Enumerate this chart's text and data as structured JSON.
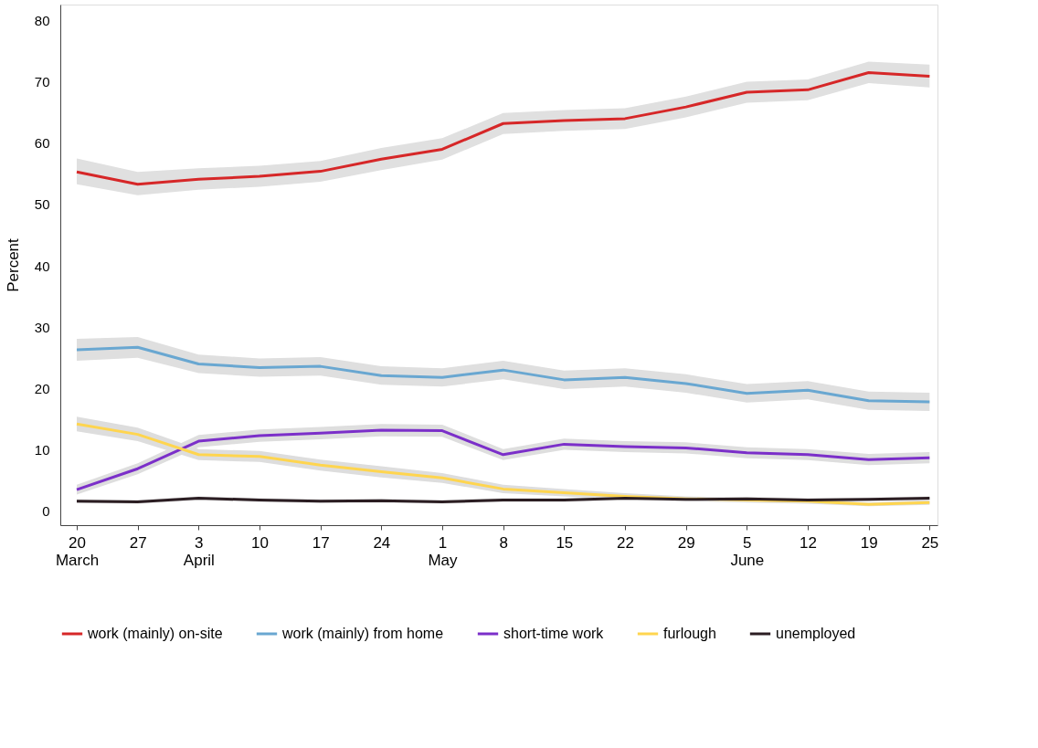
{
  "chart_data": {
    "type": "line",
    "ylabel": "Percent",
    "categories": [
      "20\nMarch",
      "27",
      "3\nApril",
      "10",
      "17",
      "24",
      "1\nMay",
      "8",
      "15",
      "22",
      "29",
      "5\nJune",
      "12",
      "19",
      "25"
    ],
    "ylim": [
      -2.3,
      82.6
    ],
    "yticks": [
      0,
      10,
      20,
      30,
      40,
      50,
      60,
      70,
      80
    ],
    "grid": false,
    "legend": "bottom",
    "marker": "none",
    "line_style": "solid",
    "series": [
      {
        "name": "work (mainly) on-site",
        "color": "#d62728",
        "values": [
          55.3,
          53.3,
          54.1,
          54.6,
          55.4,
          57.4,
          59.0,
          63.2,
          63.7,
          64.0,
          65.9,
          68.3,
          68.7,
          71.5,
          70.9
        ],
        "lower": [
          53.3,
          51.5,
          52.4,
          52.9,
          53.7,
          55.6,
          57.3,
          61.5,
          62.0,
          62.3,
          64.2,
          66.6,
          67.0,
          69.8,
          69.1
        ],
        "upper": [
          57.5,
          55.3,
          55.9,
          56.3,
          57.1,
          59.2,
          60.8,
          64.9,
          65.4,
          65.7,
          67.6,
          70.0,
          70.4,
          73.3,
          72.8
        ]
      },
      {
        "name": "work (mainly) from home",
        "color": "#69a7d1",
        "values": [
          26.3,
          26.7,
          24.0,
          23.4,
          23.6,
          22.1,
          21.8,
          23.0,
          21.4,
          21.8,
          20.8,
          19.2,
          19.7,
          18.0,
          17.8
        ],
        "lower": [
          24.5,
          25.0,
          22.5,
          21.9,
          22.1,
          20.6,
          20.3,
          21.5,
          19.9,
          20.3,
          19.3,
          17.7,
          18.2,
          16.5,
          16.3
        ],
        "upper": [
          28.1,
          28.4,
          25.5,
          24.9,
          25.1,
          23.6,
          23.3,
          24.5,
          22.9,
          23.3,
          22.3,
          20.7,
          21.2,
          19.5,
          19.3
        ]
      },
      {
        "name": "short-time work",
        "color": "#7b2fc9",
        "values": [
          3.5,
          6.9,
          11.4,
          12.3,
          12.7,
          13.2,
          13.1,
          9.2,
          10.9,
          10.5,
          10.3,
          9.5,
          9.2,
          8.4,
          8.7
        ],
        "lower": [
          2.7,
          6.0,
          10.4,
          11.3,
          11.7,
          12.2,
          12.1,
          8.3,
          10.0,
          9.6,
          9.4,
          8.6,
          8.3,
          7.5,
          7.8
        ],
        "upper": [
          4.3,
          7.8,
          12.4,
          13.3,
          13.7,
          14.2,
          14.1,
          10.1,
          11.8,
          11.4,
          11.2,
          10.4,
          10.1,
          9.3,
          9.6
        ]
      },
      {
        "name": "furlough",
        "color": "#ffd54f",
        "values": [
          14.2,
          12.5,
          9.2,
          8.9,
          7.5,
          6.4,
          5.4,
          3.6,
          3.0,
          2.4,
          2.0,
          1.8,
          1.6,
          1.1,
          1.4
        ],
        "lower": [
          13.0,
          11.4,
          8.3,
          8.0,
          6.6,
          5.5,
          4.6,
          2.9,
          2.4,
          1.9,
          1.6,
          1.4,
          1.2,
          0.8,
          1.0
        ],
        "upper": [
          15.4,
          13.6,
          10.1,
          9.8,
          8.4,
          7.3,
          6.2,
          4.3,
          3.6,
          2.9,
          2.4,
          2.2,
          2.0,
          1.4,
          1.8
        ]
      },
      {
        "name": "unemployed",
        "color": "#2b1d22",
        "values": [
          1.6,
          1.5,
          2.1,
          1.8,
          1.6,
          1.7,
          1.5,
          1.8,
          1.8,
          2.1,
          1.9,
          2.0,
          1.8,
          1.9,
          2.1
        ],
        "lower": [
          1.3,
          1.2,
          1.8,
          1.5,
          1.3,
          1.4,
          1.2,
          1.5,
          1.5,
          1.8,
          1.6,
          1.7,
          1.5,
          1.6,
          1.8
        ],
        "upper": [
          1.9,
          1.8,
          2.4,
          2.1,
          1.9,
          2.0,
          1.8,
          2.1,
          2.1,
          2.4,
          2.2,
          2.3,
          2.1,
          2.2,
          2.4
        ]
      }
    ]
  }
}
